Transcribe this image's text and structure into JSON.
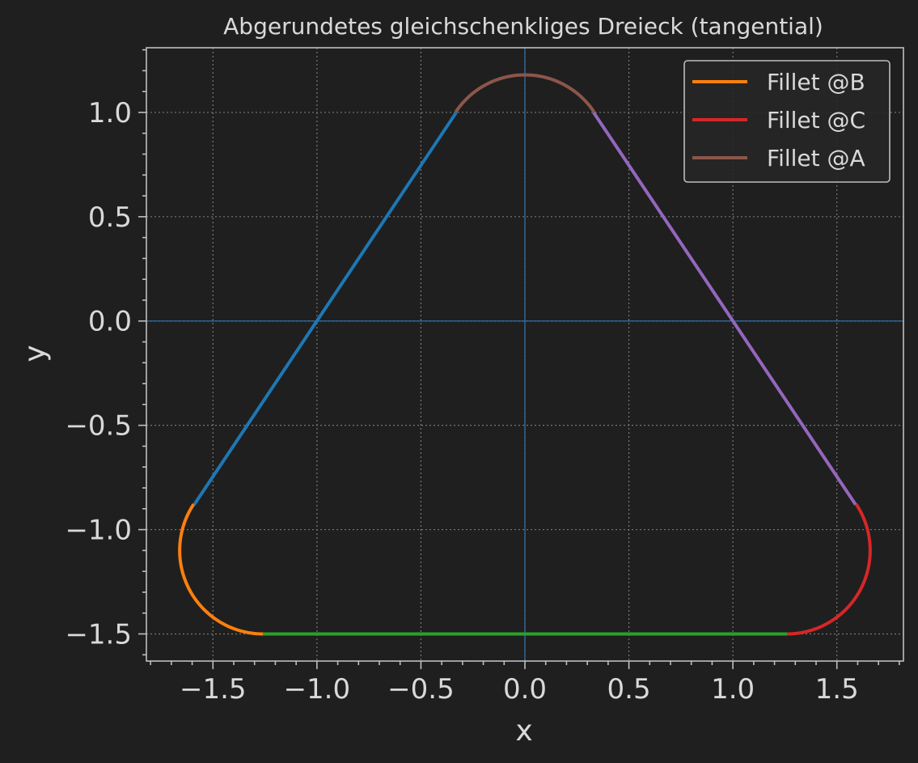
{
  "colors": {
    "background": "#1f1f1f",
    "text": "#d9d9d9",
    "axes_edge": "#bfbfbf",
    "grid": "#777777",
    "zero_lines": "#2f6fa8",
    "legend_bg": "#262626",
    "legend_edge": "#bdbdbd"
  },
  "chart_data": {
    "type": "line",
    "title": "Abgerundetes gleichschenkliges Dreieck (tangential)",
    "xlabel": "x",
    "ylabel": "y",
    "xlim": [
      -1.82,
      1.82
    ],
    "ylim": [
      -1.63,
      1.31
    ],
    "xticks": [
      -1.5,
      -1.0,
      -0.5,
      0.0,
      0.5,
      1.0,
      1.5
    ],
    "yticks": [
      -1.5,
      -1.0,
      -0.5,
      0.0,
      0.5,
      1.0
    ],
    "xtick_labels": [
      "−1.5",
      "−1.0",
      "−0.5",
      "0.0",
      "0.5",
      "1.0",
      "1.5"
    ],
    "ytick_labels": [
      "−1.5",
      "−1.0",
      "−0.5",
      "0.0",
      "0.5",
      "1.0"
    ],
    "grid": true,
    "zero_lines": true,
    "aspect": "equal",
    "legend_placement": "top-right",
    "legend": [
      {
        "label": "Fillet @B",
        "color": "#ff7f0e"
      },
      {
        "label": "Fillet @C",
        "color": "#d62728"
      },
      {
        "label": "Fillet @A",
        "color": "#8c564b"
      }
    ],
    "segments": [
      {
        "kind": "line",
        "color": "#1f77b4",
        "points": [
          [
            -1.59,
            -0.88
          ],
          [
            -0.33,
            1.0
          ]
        ]
      },
      {
        "kind": "line",
        "color": "#9467bd",
        "points": [
          [
            0.33,
            1.0
          ],
          [
            1.59,
            -0.88
          ]
        ]
      },
      {
        "kind": "line",
        "color": "#2ca02c",
        "points": [
          [
            -1.26,
            -1.5
          ],
          [
            1.26,
            -1.5
          ]
        ]
      },
      {
        "kind": "arc",
        "name": "Fillet @A",
        "color": "#8c564b",
        "center": [
          0.0,
          0.78
        ],
        "radius": 0.4,
        "start_deg": 33.7,
        "end_deg": 146.3
      },
      {
        "kind": "arc",
        "name": "Fillet @B",
        "color": "#ff7f0e",
        "center": [
          -1.26,
          -1.1
        ],
        "radius": 0.4,
        "start_deg": 146.3,
        "end_deg": 270.0
      },
      {
        "kind": "arc",
        "name": "Fillet @C",
        "color": "#d62728",
        "center": [
          1.26,
          -1.1
        ],
        "radius": 0.4,
        "start_deg": -90.0,
        "end_deg": 33.7
      }
    ]
  }
}
